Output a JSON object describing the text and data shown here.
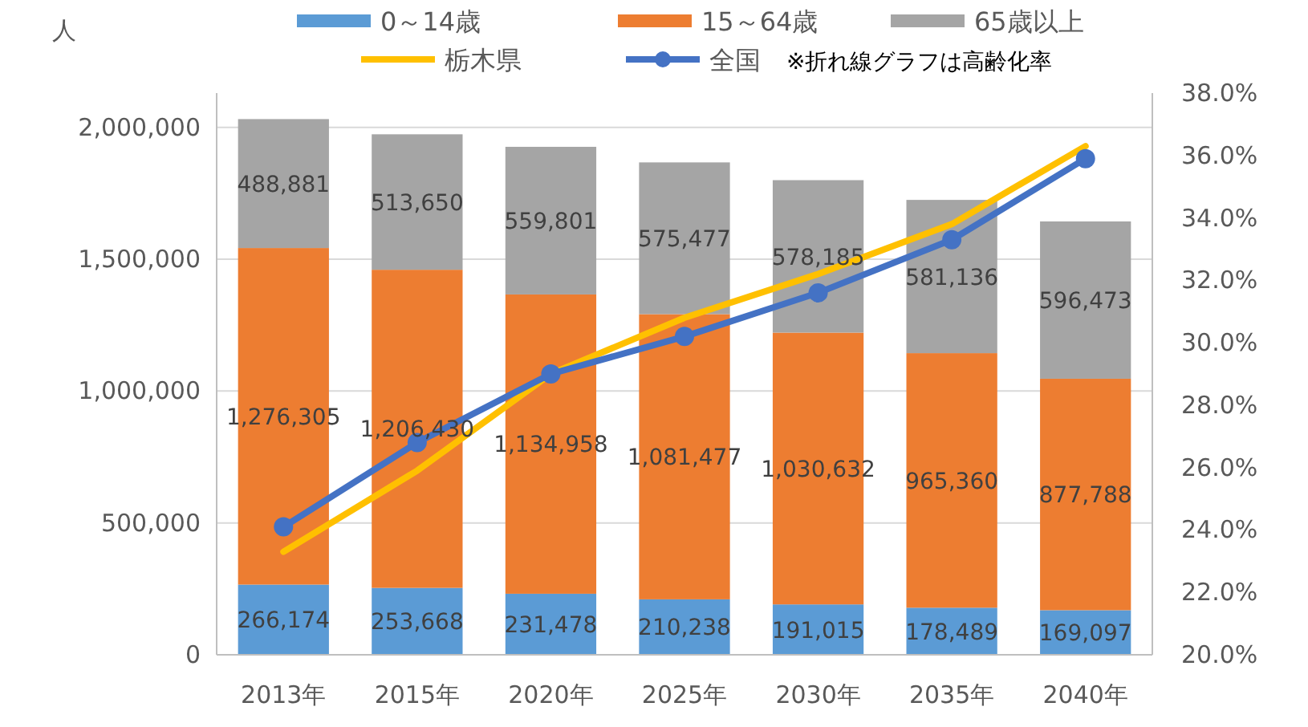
{
  "chart_data": {
    "type": "bar",
    "stacked": true,
    "ylabel": "人",
    "categories": [
      "2013年",
      "2015年",
      "2020年",
      "2025年",
      "2030年",
      "2035年",
      "2040年"
    ],
    "series": [
      {
        "name": "0～14歳",
        "color": "#5b9bd5",
        "values": [
          266174,
          253668,
          231478,
          210238,
          191015,
          178489,
          169097
        ],
        "value_labels": [
          "266,174",
          "253,668",
          "231,478",
          "210,238",
          "191,015",
          "178,489",
          "169,097"
        ]
      },
      {
        "name": "15～64歳",
        "color": "#ed7d31",
        "values": [
          1276305,
          1206430,
          1134958,
          1081477,
          1030632,
          965360,
          877788
        ],
        "value_labels": [
          "1,276,305",
          "1,206,430",
          "1,134,958",
          "1,081,477",
          "1,030,632",
          "965,360",
          "877,788"
        ]
      },
      {
        "name": "65歳以上",
        "color": "#a5a5a5",
        "values": [
          488881,
          513650,
          559801,
          575477,
          578185,
          581136,
          596473
        ],
        "value_labels": [
          "488,881",
          "513,650",
          "559,801",
          "575,477",
          "578,185",
          "581,136",
          "596,473"
        ]
      },
      {
        "name": "栃木県",
        "type": "line",
        "axis": "y2",
        "color": "#ffc000",
        "marker": "none",
        "values": [
          23.3,
          25.9,
          29.0,
          30.8,
          32.2,
          33.8,
          36.3
        ]
      },
      {
        "name": "全国",
        "type": "line",
        "axis": "y2",
        "color": "#4472c4",
        "marker": "circle",
        "values": [
          24.1,
          26.8,
          29.0,
          30.2,
          31.6,
          33.3,
          35.9
        ]
      }
    ],
    "ylim": [
      0,
      2130000
    ],
    "yticks": [
      {
        "value": 0,
        "label": "0"
      },
      {
        "value": 500000,
        "label": "500,000"
      },
      {
        "value": 1000000,
        "label": "1,000,000"
      },
      {
        "value": 1500000,
        "label": "1,500,000"
      },
      {
        "value": 2000000,
        "label": "2,000,000"
      }
    ],
    "y2lim": [
      20,
      38
    ],
    "y2ticks": [
      {
        "value": 20,
        "label": "20.0%"
      },
      {
        "value": 22,
        "label": "22.0%"
      },
      {
        "value": 24,
        "label": "24.0%"
      },
      {
        "value": 26,
        "label": "26.0%"
      },
      {
        "value": 28,
        "label": "28.0%"
      },
      {
        "value": 30,
        "label": "30.0%"
      },
      {
        "value": 32,
        "label": "32.0%"
      },
      {
        "value": 34,
        "label": "34.0%"
      },
      {
        "value": 36,
        "label": "36.0%"
      },
      {
        "value": 38,
        "label": "38.0%"
      }
    ],
    "grid": "y",
    "legend": "top",
    "line_style": "solid",
    "annotations": [
      "※折れ線グラフは高齢化率"
    ]
  }
}
